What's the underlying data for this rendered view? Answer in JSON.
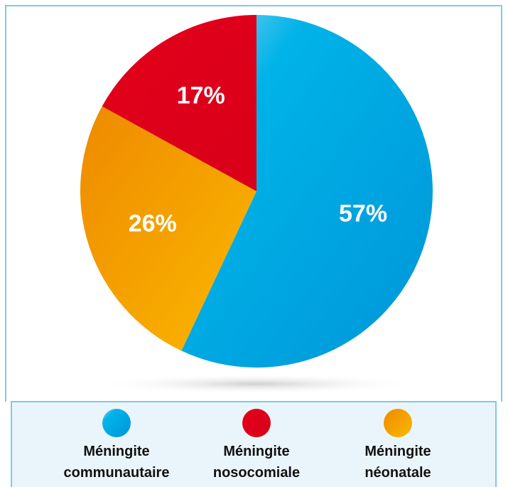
{
  "chart_data": {
    "type": "pie",
    "categories": [
      "Méningite communautaire",
      "Méningite néonatale",
      "Méningite nosocomiale"
    ],
    "values": [
      57,
      26,
      17
    ],
    "value_labels": [
      "57%",
      "26%",
      "17%"
    ],
    "colors": [
      "#00a3e0",
      "#f5a000",
      "#e2001a"
    ],
    "legend": "bottom"
  }
}
